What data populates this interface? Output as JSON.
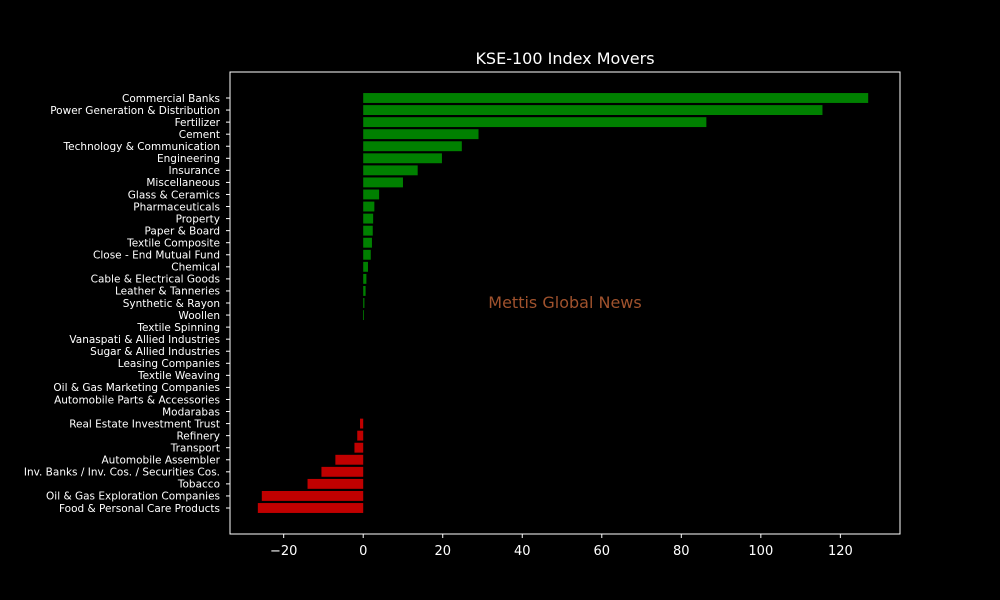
{
  "chart_data": {
    "type": "bar",
    "orientation": "horizontal",
    "title": "KSE-100 Index Movers",
    "xlabel": "",
    "ylabel": "",
    "xlim": [
      -33.5,
      135
    ],
    "xticks": [
      -20,
      0,
      20,
      40,
      60,
      80,
      100,
      120
    ],
    "xtick_labels": [
      "−20",
      "0",
      "20",
      "40",
      "60",
      "80",
      "100",
      "120"
    ],
    "grid": false,
    "categories": [
      "Commercial Banks",
      "Power Generation & Distribution",
      "Fertilizer",
      "Cement",
      "Technology & Communication",
      "Engineering",
      "Insurance",
      "Miscellaneous",
      "Glass & Ceramics",
      "Pharmaceuticals",
      "Property",
      "Paper & Board",
      "Textile Composite",
      "Close - End Mutual Fund",
      "Chemical",
      "Cable & Electrical Goods",
      "Leather & Tanneries",
      "Synthetic & Rayon",
      "Woollen",
      "Textile Spinning",
      "Vanaspati & Allied Industries",
      "Sugar & Allied Industries",
      "Leasing Companies",
      "Textile Weaving",
      "Oil & Gas Marketing Companies",
      "Automobile Parts & Accessories",
      "Modarabas",
      "Real Estate Investment Trust",
      "Refinery",
      "Transport",
      "Automobile Assembler",
      "Inv. Banks / Inv. Cos. / Securities Cos.",
      "Tobacco",
      "Oil & Gas Exploration Companies",
      "Food & Personal Care Products"
    ],
    "values": [
      127,
      115.5,
      86.3,
      29,
      24.8,
      19.8,
      13.7,
      10,
      4,
      2.8,
      2.5,
      2.4,
      2.2,
      1.9,
      1.2,
      0.8,
      0.6,
      0.3,
      0.2,
      0,
      0,
      0,
      0,
      0,
      0,
      0,
      0,
      -0.8,
      -1.5,
      -2.2,
      -7,
      -10.5,
      -14,
      -25.5,
      -26.5
    ],
    "colors": {
      "positive": "#008000",
      "negative": "#c00000"
    }
  },
  "watermark": {
    "text": "Mettis Global News",
    "color": "#a0522d"
  },
  "style": {
    "background": "#000000",
    "axes_color": "#ffffff"
  }
}
